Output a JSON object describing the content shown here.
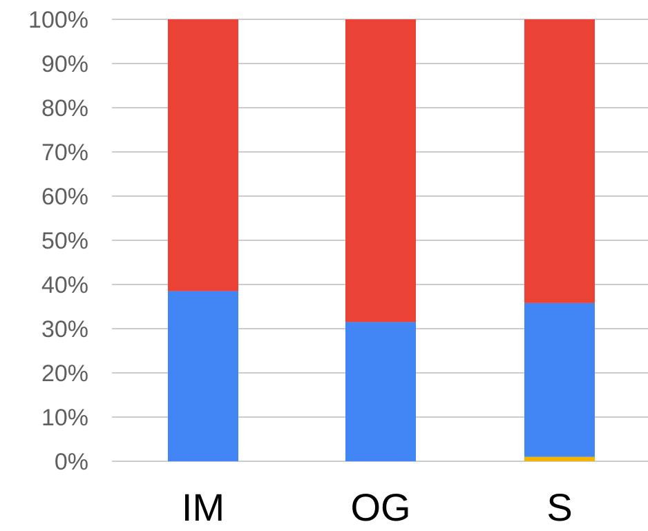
{
  "chart_data": {
    "type": "bar",
    "stacked": true,
    "normalized": true,
    "categories": [
      "IM",
      "OG",
      "S"
    ],
    "series": [
      {
        "color": "#f4b400",
        "values": [
          0,
          0,
          1
        ]
      },
      {
        "color": "#4285f4",
        "values": [
          38.5,
          31.5,
          34.8
        ]
      },
      {
        "color": "#ea4335",
        "values": [
          61.5,
          68.5,
          64.2
        ]
      }
    ],
    "ylim": [
      0,
      100
    ],
    "yticks": [
      "0%",
      "10%",
      "20%",
      "30%",
      "40%",
      "50%",
      "60%",
      "70%",
      "80%",
      "90%",
      "100%"
    ],
    "grid": true,
    "legend": "none"
  }
}
